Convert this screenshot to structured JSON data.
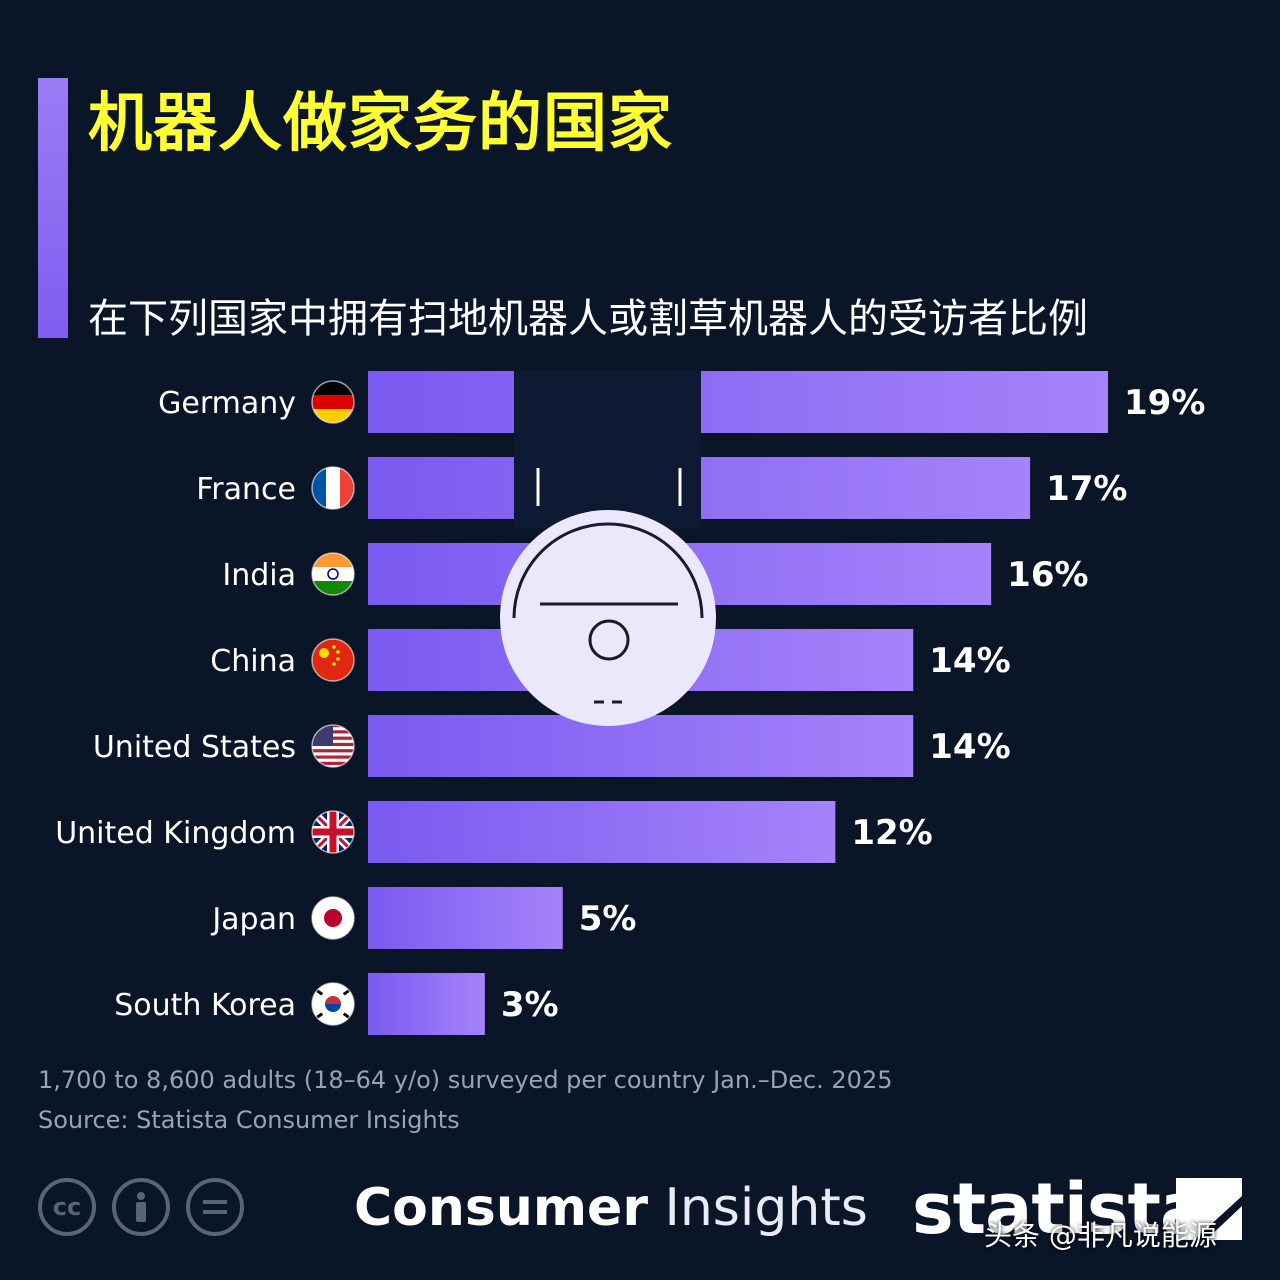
{
  "header": {
    "title": "机器人做家务的国家",
    "subtitle": "在下列国家中拥有扫地机器人或割草机器人的受访者比例"
  },
  "colors": {
    "bar_start": "#7a5af0",
    "bar_end": "#a583fa",
    "title": "#ffff33",
    "background": "#0b1528"
  },
  "chart_data": {
    "type": "bar",
    "orientation": "horizontal",
    "categories": [
      "Germany",
      "France",
      "India",
      "China",
      "United States",
      "United Kingdom",
      "Japan",
      "South Korea"
    ],
    "values": [
      19,
      17,
      16,
      14,
      14,
      12,
      5,
      3
    ],
    "value_labels": [
      "19%",
      "17%",
      "16%",
      "14%",
      "14%",
      "12%",
      "5%",
      "3%"
    ],
    "flags": [
      "flag-germany-icon",
      "flag-france-icon",
      "flag-india-icon",
      "flag-china-icon",
      "flag-united-states-icon",
      "flag-united-kingdom-icon",
      "flag-japan-icon",
      "flag-south-korea-icon"
    ],
    "xlim": [
      0,
      19
    ],
    "unit": "%",
    "grid": false
  },
  "footer": {
    "note": "1,700 to 8,600 adults (18–64 y/o) surveyed per country Jan.–Dec. 2025",
    "source": "Source: Statista Consumer Insights",
    "brand_bold": "Consumer",
    "brand_light": "Insights",
    "logo_text": "statista",
    "watermark": "头条 @非凡说能源",
    "license_icons": [
      "cc-icon",
      "by-icon",
      "nd-icon"
    ]
  }
}
